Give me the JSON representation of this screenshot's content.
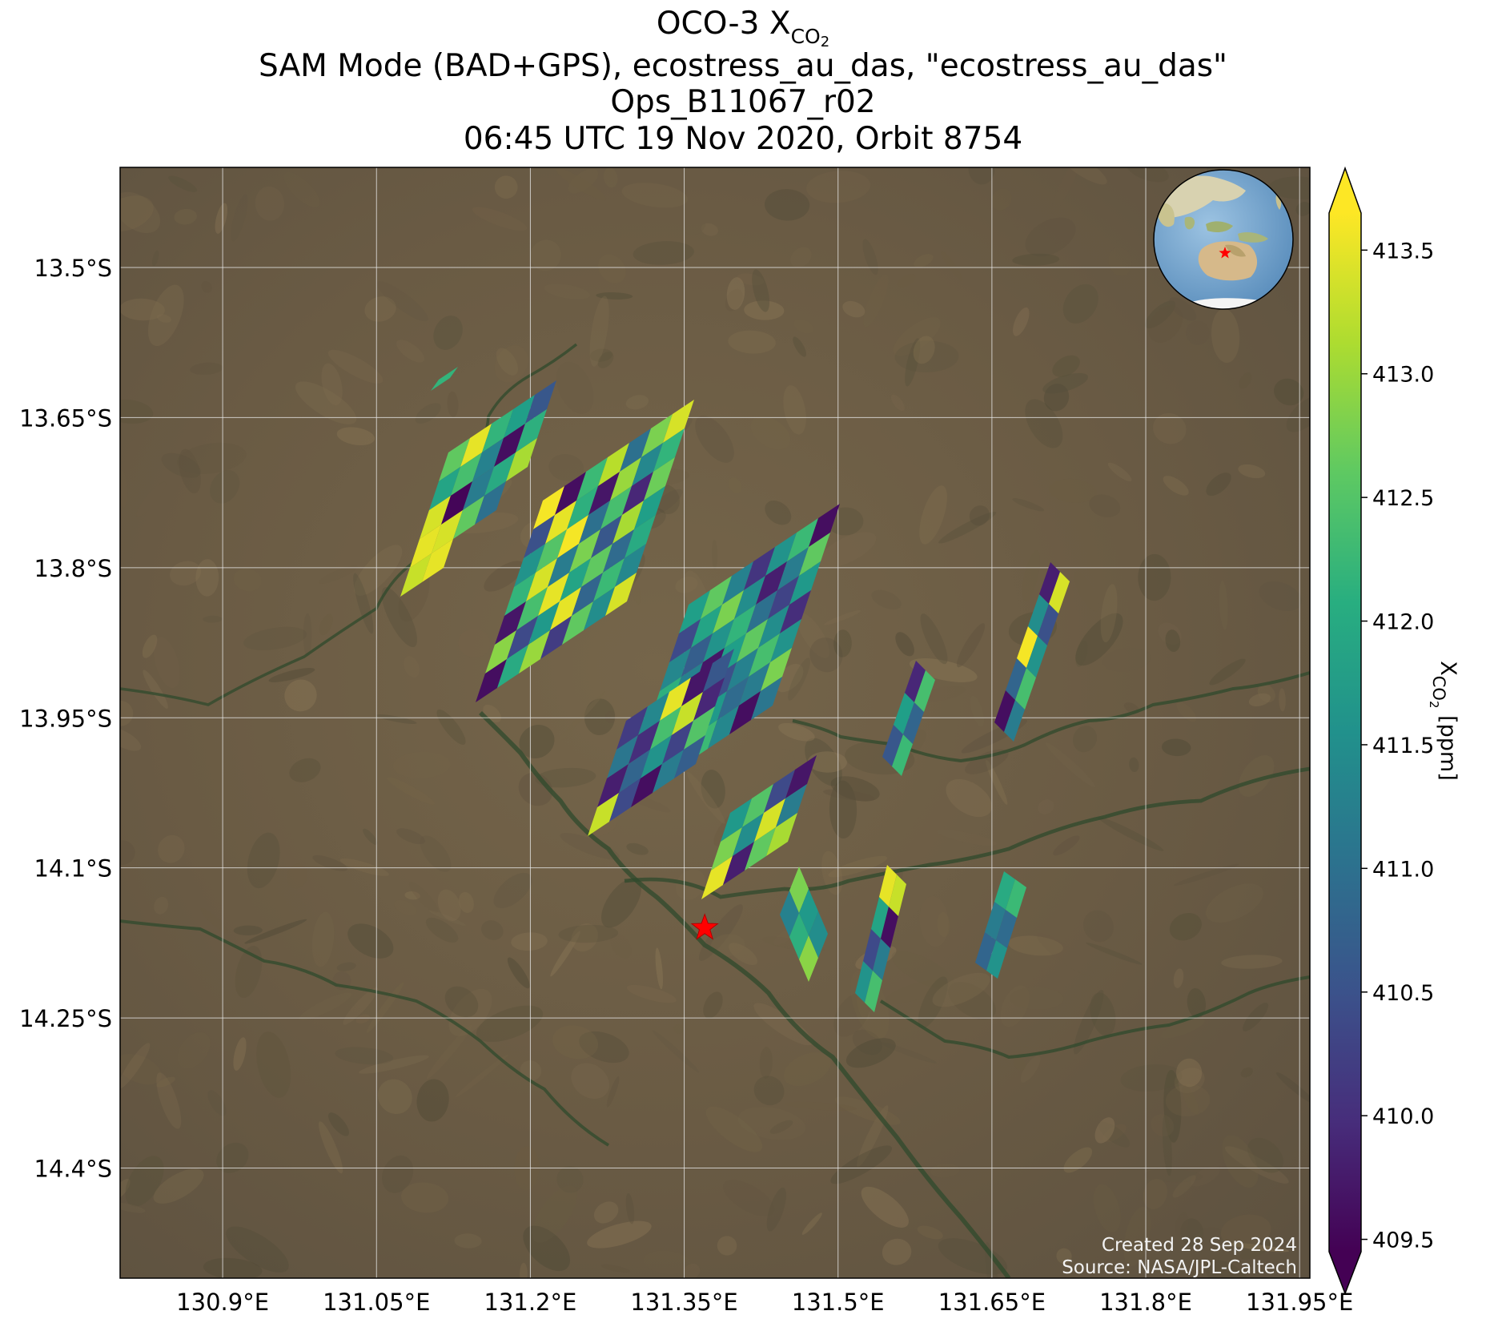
{
  "title": {
    "line1_prefix": "OCO-3 X",
    "line1_sub": "CO",
    "line1_subsub": "2",
    "line2": "SAM Mode (BAD+GPS), ecostress_au_das, \"ecostress_au_das\"",
    "line3": "Ops_B11067_r02",
    "line4": "06:45 UTC 19 Nov 2020, Orbit 8754"
  },
  "chart_data": {
    "type": "heatmap",
    "projection": "lat-lon map with satellite imagery background",
    "x_ticks": [
      "130.9°E",
      "131.05°E",
      "131.2°E",
      "131.35°E",
      "131.5°E",
      "131.65°E",
      "131.8°E",
      "131.95°E"
    ],
    "y_ticks": [
      "13.5°S",
      "13.65°S",
      "13.8°S",
      "13.95°S",
      "14.1°S",
      "14.25°S",
      "14.4°S"
    ],
    "lon_range": [
      130.8,
      131.96
    ],
    "lat_range": [
      -14.51,
      -13.4
    ],
    "grid": true,
    "colormap": "viridis",
    "colorbar": {
      "label_prefix": "X",
      "label_sub": "CO",
      "label_subsub": "2",
      "label_suffix": " [ppm]",
      "ticks": [
        "409.5",
        "410.0",
        "410.5",
        "411.0",
        "411.5",
        "412.0",
        "412.5",
        "413.0",
        "413.5"
      ],
      "range": [
        409.45,
        413.65
      ],
      "extend": "both"
    },
    "target_marker": {
      "lon": 131.37,
      "lat": -14.16,
      "color": "#ff0000",
      "shape": "star"
    },
    "soundings_note": "approximate XCO2 values in ppm along swaths",
    "swaths": [
      {
        "name": "swath-a",
        "values": [
          [
            412.6,
            413.5,
            412.2,
            411.8,
            410.6
          ],
          [
            411.9,
            412.4,
            411.3,
            409.6,
            412.1
          ],
          [
            413.4,
            409.5,
            411.2,
            412.0,
            413.1
          ],
          [
            413.5,
            413.4,
            412.6,
            411.0
          ],
          [
            413.3,
            413.5
          ]
        ]
      },
      {
        "name": "swath-b",
        "values": [
          [
            413.6,
            409.6,
            412.3,
            413.2,
            411.0,
            412.8,
            413.4
          ],
          [
            410.5,
            413.5,
            412.1,
            409.7,
            413.0,
            411.4,
            412.2
          ],
          [
            411.6,
            412.5,
            413.6,
            411.0,
            412.4,
            409.9,
            412.7
          ],
          [
            412.2,
            413.4,
            411.2,
            412.8,
            410.6,
            413.1,
            411.8
          ],
          [
            409.7,
            412.4,
            413.5,
            411.9,
            412.6,
            410.9,
            412.0
          ],
          [
            412.9,
            410.4,
            411.7,
            413.5,
            410.8,
            412.3,
            411.4
          ],
          [
            409.6,
            412.0,
            413.0,
            410.2,
            412.6,
            411.5,
            413.4
          ]
        ]
      },
      {
        "name": "swath-c",
        "values": [
          [
            411.8,
            412.6,
            411.3,
            410.1,
            411.6,
            412.3,
            409.6
          ],
          [
            410.4,
            411.9,
            412.8,
            411.5,
            409.8,
            411.2,
            412.6
          ],
          [
            411.4,
            410.7,
            411.6,
            412.2,
            411.0,
            410.3,
            411.7
          ],
          [
            412.1,
            411.3,
            409.7,
            411.8,
            412.6,
            411.5,
            410.0
          ],
          [
            410.8,
            412.5,
            411.4,
            410.5,
            411.3,
            412.4,
            411.6
          ],
          [
            411.5,
            409.9,
            412.0,
            411.7,
            410.9,
            411.2,
            412.8
          ],
          [
            409.8,
            411.6,
            410.6,
            412.3,
            411.4,
            409.6,
            411.1
          ]
        ]
      },
      {
        "name": "swath-d",
        "values": [
          [
            410.2,
            411.4,
            413.5,
            409.7,
            410.6
          ],
          [
            411.1,
            410.0,
            412.4,
            413.3,
            409.9
          ],
          [
            409.8,
            410.8,
            411.6,
            410.3,
            412.5
          ],
          [
            413.3,
            410.4,
            409.6,
            411.2,
            410.7
          ]
        ]
      },
      {
        "name": "swath-e",
        "values": [
          [
            411.7,
            412.5,
            410.4,
            409.7
          ],
          [
            412.8,
            411.5,
            413.4,
            411.2
          ],
          [
            413.5,
            409.8,
            412.6,
            413.1
          ]
        ]
      },
      {
        "name": "swath-f",
        "values": [
          [
            409.6,
            410.8,
            413.6,
            411.5,
            409.8
          ],
          [
            411.2,
            412.4,
            411.6,
            410.5,
            413.4
          ]
        ]
      },
      {
        "name": "swath-g",
        "values": [
          [
            410.6,
            411.8,
            409.9
          ],
          [
            412.3,
            410.8,
            412.4
          ]
        ]
      },
      {
        "name": "swath-h",
        "values": [
          [
            411.6,
            410.4,
            411.9,
            413.5
          ],
          [
            412.4,
            411.2,
            409.6,
            413.3
          ]
        ]
      },
      {
        "name": "swath-i",
        "values": [
          [
            411.3,
            412.8
          ],
          [
            412.1,
            411.7
          ],
          [
            412.9,
            411.5
          ]
        ]
      },
      {
        "name": "swath-j",
        "values": [
          [
            410.8,
            411.2,
            412.0
          ],
          [
            411.6,
            410.9,
            412.3
          ]
        ]
      },
      {
        "name": "isolated",
        "values": [
          [
            412.2
          ]
        ]
      }
    ]
  },
  "watermark": {
    "line1": "Created 28 Sep 2024",
    "line2": "Source: NASA/JPL-Caltech"
  },
  "colors": {
    "background": "#6f6047",
    "grid": "#e6e6e6",
    "marker": "#ff0000"
  }
}
